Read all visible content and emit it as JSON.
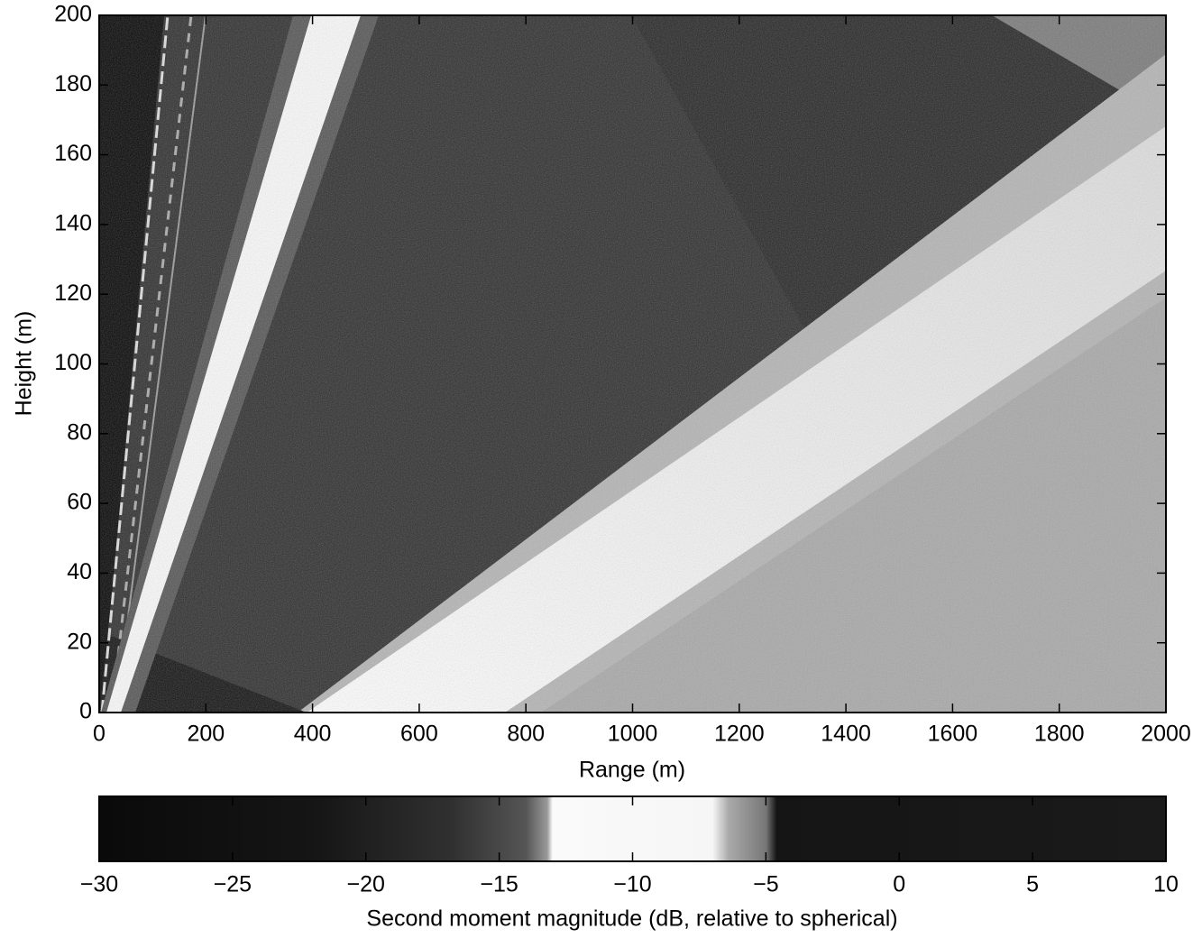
{
  "chart_data": {
    "type": "heatmap",
    "xlabel": "Range (m)",
    "ylabel": "Height (m)",
    "xlim": [
      0,
      2000
    ],
    "xticks": [
      0,
      200,
      400,
      600,
      800,
      1000,
      1200,
      1400,
      1600,
      1800,
      2000
    ],
    "ylim": [
      0,
      200
    ],
    "yticks": [
      0,
      20,
      40,
      60,
      80,
      100,
      120,
      140,
      160,
      180,
      200
    ],
    "colorbar": {
      "label": "Second moment magnitude (dB, relative to spherical)",
      "lim": [
        -30,
        10
      ],
      "ticks": [
        {
          "value": -30,
          "label": "−30"
        },
        {
          "value": -25,
          "label": "−25"
        },
        {
          "value": -20,
          "label": "−20"
        },
        {
          "value": -15,
          "label": "−15"
        },
        {
          "value": -10,
          "label": "−10"
        },
        {
          "value": -5,
          "label": "−5"
        },
        0,
        5,
        10
      ]
    }
  }
}
